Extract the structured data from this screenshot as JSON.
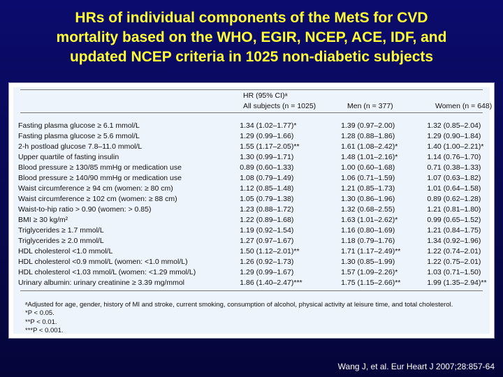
{
  "slide": {
    "title_lines": [
      "HRs of individual components of the MetS for CVD",
      "mortality based on the WHO, EGIR, NCEP, ACE, IDF, and",
      "updated NCEP criteria in 1025 non-diabetic subjects"
    ],
    "citation": "Wang J, et al. Eur Heart J 2007;28:857-64",
    "colors": {
      "background": "#08084f",
      "title": "#ffff33",
      "citation": "#ffffff",
      "panel": "#eef4fb"
    }
  },
  "table": {
    "header_group": "HR (95% CI)ᵃ",
    "columns": [
      "All subjects (n = 1025)",
      "Men (n = 377)",
      "Women (n = 648)"
    ],
    "rows": [
      [
        "Fasting plasma glucose ≥ 6.1 mmol/L",
        "1.34 (1.02–1.77)*",
        "1.39 (0.97–2.00)",
        "1.32 (0.85–2.04)"
      ],
      [
        "Fasting plasma glucose ≥ 5.6 mmol/L",
        "1.29 (0.99–1.66)",
        "1.28 (0.88–1.86)",
        "1.29 (0.90–1.84)"
      ],
      [
        "2-h postload glucose 7.8–11.0 mmol/L",
        "1.55 (1.17–2.05)**",
        "1.61 (1.08–2.42)*",
        "1.40 (1.00–2.21)*"
      ],
      [
        "Upper quartile of fasting insulin",
        "1.30 (0.99–1.71)",
        "1.48 (1.01–2.16)*",
        "1.14 (0.76–1.70)"
      ],
      [
        "Blood pressure ≥ 130/85 mmHg or medication use",
        "0.89 (0.60–1.33)",
        "1.00 (0.60–1.68)",
        "0.71 (0.38–1.33)"
      ],
      [
        "Blood pressure ≥ 140/90 mmHg or medication use",
        "1.08 (0.79–1.49)",
        "1.06 (0.71–1.59)",
        "1.07 (0.63–1.82)"
      ],
      [
        "Waist circumference ≥ 94 cm (women: ≥ 80 cm)",
        "1.12 (0.85–1.48)",
        "1.21 (0.85–1.73)",
        "1.01 (0.64–1.58)"
      ],
      [
        "Waist circumference ≥ 102 cm (women: ≥ 88 cm)",
        "1.05 (0.79–1.38)",
        "1.30 (0.86–1.96)",
        "0.89 (0.62–1.28)"
      ],
      [
        "Waist-to-hip ratio > 0.90 (women: > 0.85)",
        "1.23 (0.88–1.72)",
        "1.32 (0.68–2.55)",
        "1.21 (0.81–1.80)"
      ],
      [
        "BMI ≥ 30 kg/m²",
        "1.22 (0.89–1.68)",
        "1.63 (1.01–2.62)*",
        "0.99 (0.65–1.52)"
      ],
      [
        "Triglycerides ≥ 1.7 mmol/L",
        "1.19 (0.92–1.54)",
        "1.16 (0.80–1.69)",
        "1.21 (0.84–1.75)"
      ],
      [
        "Triglycerides ≥ 2.0 mmol/L",
        "1.27 (0.97–1.67)",
        "1.18 (0.79–1.76)",
        "1.34 (0.92–1.96)"
      ],
      [
        "HDL cholesterol <1.0 mmol/L",
        "1.50 (1.12–2.01)**",
        "1.71 (1.17–2.49)**",
        "1.22 (0.74–2.01)"
      ],
      [
        "HDL cholesterol <0.9 mmol/L (women: <1.0 mmol/L)",
        "1.26 (0.92–1.73)",
        "1.30 (0.85–1.99)",
        "1.22 (0.75–2.01)"
      ],
      [
        "HDL cholesterol <1.03 mmol/L (women: <1.29 mmol/L)",
        "1.29 (0.99–1.67)",
        "1.57 (1.09–2.26)*",
        "1.03 (0.71–1.50)"
      ],
      [
        "Urinary albumin: urinary creatinine ≥ 3.39 mg/mmol",
        "1.86 (1.40–2.47)***",
        "1.75 (1.15–2.66)**",
        "1.99 (1.35–2.94)**"
      ]
    ],
    "footnotes": [
      "ᵃAdjusted for age, gender, history of MI and stroke, current smoking, consumption of alcohol, physical activity at leisure time, and total cholesterol.",
      "*P < 0.05.",
      "**P < 0.01.",
      "***P < 0.001."
    ]
  }
}
